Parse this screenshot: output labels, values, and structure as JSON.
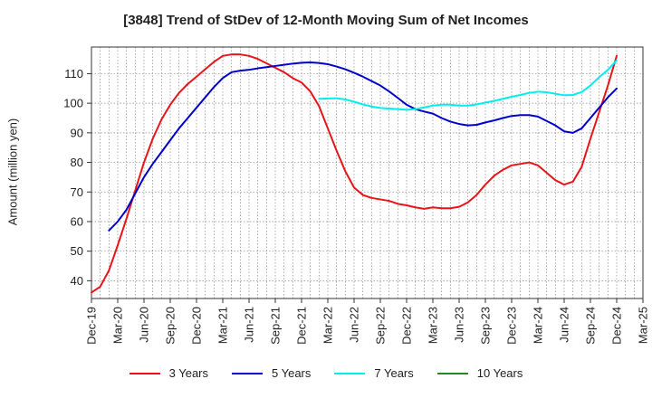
{
  "chart_data": {
    "type": "line",
    "title": "[3848]  Trend of StDev of 12-Month Moving Sum of Net Incomes",
    "ylabel": "Amount (million yen)",
    "xlabel": "",
    "ylim": [
      34,
      119
    ],
    "yticks": [
      40,
      50,
      60,
      70,
      80,
      90,
      100,
      110
    ],
    "xlim": [
      "2019-12",
      "2025-03"
    ],
    "xticks": [
      "Dec-19",
      "Mar-20",
      "Jun-20",
      "Sep-20",
      "Dec-20",
      "Mar-21",
      "Jun-21",
      "Sep-21",
      "Dec-21",
      "Mar-22",
      "Jun-22",
      "Sep-22",
      "Dec-22",
      "Mar-23",
      "Jun-23",
      "Sep-23",
      "Dec-23",
      "Mar-24",
      "Jun-24",
      "Sep-24",
      "Dec-24",
      "Mar-25"
    ],
    "grid": true,
    "legend_position": "bottom",
    "series": [
      {
        "name": "3 Years",
        "color": "#e8141a",
        "points": [
          [
            "2019-12",
            36
          ],
          [
            "2020-01",
            38
          ],
          [
            "2020-02",
            43.5
          ],
          [
            "2020-03",
            52
          ],
          [
            "2020-04",
            61
          ],
          [
            "2020-05",
            70.5
          ],
          [
            "2020-06",
            80
          ],
          [
            "2020-07",
            88
          ],
          [
            "2020-08",
            94.5
          ],
          [
            "2020-09",
            99.5
          ],
          [
            "2020-10",
            103.5
          ],
          [
            "2020-11",
            106.5
          ],
          [
            "2020-12",
            109
          ],
          [
            "2021-01",
            111.5
          ],
          [
            "2021-02",
            114
          ],
          [
            "2021-03",
            116
          ],
          [
            "2021-04",
            116.5
          ],
          [
            "2021-05",
            116.5
          ],
          [
            "2021-06",
            116
          ],
          [
            "2021-07",
            115
          ],
          [
            "2021-08",
            113.5
          ],
          [
            "2021-09",
            112
          ],
          [
            "2021-10",
            110.5
          ],
          [
            "2021-11",
            108.5
          ],
          [
            "2021-12",
            107
          ],
          [
            "2022-01",
            104
          ],
          [
            "2022-02",
            99
          ],
          [
            "2022-03",
            91.5
          ],
          [
            "2022-04",
            84
          ],
          [
            "2022-05",
            77
          ],
          [
            "2022-06",
            71.5
          ],
          [
            "2022-07",
            69
          ],
          [
            "2022-08",
            68
          ],
          [
            "2022-09",
            67.5
          ],
          [
            "2022-10",
            67
          ],
          [
            "2022-11",
            66
          ],
          [
            "2022-12",
            65.5
          ],
          [
            "2023-01",
            64.8
          ],
          [
            "2023-02",
            64.3
          ],
          [
            "2023-03",
            64.8
          ],
          [
            "2023-04",
            64.5
          ],
          [
            "2023-05",
            64.5
          ],
          [
            "2023-06",
            65
          ],
          [
            "2023-07",
            66.5
          ],
          [
            "2023-08",
            69
          ],
          [
            "2023-09",
            72.5
          ],
          [
            "2023-10",
            75.5
          ],
          [
            "2023-11",
            77.5
          ],
          [
            "2023-12",
            79
          ],
          [
            "2024-01",
            79.5
          ],
          [
            "2024-02",
            80
          ],
          [
            "2024-03",
            79
          ],
          [
            "2024-04",
            76.5
          ],
          [
            "2024-05",
            74
          ],
          [
            "2024-06",
            72.5
          ],
          [
            "2024-07",
            73.5
          ],
          [
            "2024-08",
            78.5
          ],
          [
            "2024-09",
            88
          ],
          [
            "2024-10",
            97
          ],
          [
            "2024-11",
            106
          ],
          [
            "2024-12",
            116
          ]
        ]
      },
      {
        "name": "5 Years",
        "color": "#0000cc",
        "points": [
          [
            "2020-02",
            57
          ],
          [
            "2020-03",
            60
          ],
          [
            "2020-04",
            64
          ],
          [
            "2020-05",
            69.5
          ],
          [
            "2020-06",
            75
          ],
          [
            "2020-07",
            79.5
          ],
          [
            "2020-08",
            83.5
          ],
          [
            "2020-09",
            87.5
          ],
          [
            "2020-10",
            91.5
          ],
          [
            "2020-11",
            95
          ],
          [
            "2020-12",
            98.5
          ],
          [
            "2021-01",
            102
          ],
          [
            "2021-02",
            105.5
          ],
          [
            "2021-03",
            108.5
          ],
          [
            "2021-04",
            110.5
          ],
          [
            "2021-05",
            111
          ],
          [
            "2021-06",
            111.3
          ],
          [
            "2021-07",
            111.8
          ],
          [
            "2021-08",
            112.2
          ],
          [
            "2021-09",
            112.6
          ],
          [
            "2021-10",
            113
          ],
          [
            "2021-11",
            113.4
          ],
          [
            "2021-12",
            113.7
          ],
          [
            "2022-01",
            113.8
          ],
          [
            "2022-02",
            113.6
          ],
          [
            "2022-03",
            113.2
          ],
          [
            "2022-04",
            112.4
          ],
          [
            "2022-05",
            111.5
          ],
          [
            "2022-06",
            110.3
          ],
          [
            "2022-07",
            109
          ],
          [
            "2022-08",
            107.5
          ],
          [
            "2022-09",
            106
          ],
          [
            "2022-10",
            104
          ],
          [
            "2022-11",
            101.8
          ],
          [
            "2022-12",
            99.5
          ],
          [
            "2023-01",
            98
          ],
          [
            "2023-02",
            97.2
          ],
          [
            "2023-03",
            96.5
          ],
          [
            "2023-04",
            95
          ],
          [
            "2023-05",
            93.8
          ],
          [
            "2023-06",
            93
          ],
          [
            "2023-07",
            92.5
          ],
          [
            "2023-08",
            92.7
          ],
          [
            "2023-09",
            93.5
          ],
          [
            "2023-10",
            94.2
          ],
          [
            "2023-11",
            95
          ],
          [
            "2023-12",
            95.7
          ],
          [
            "2024-01",
            96
          ],
          [
            "2024-02",
            96
          ],
          [
            "2024-03",
            95.5
          ],
          [
            "2024-04",
            94
          ],
          [
            "2024-05",
            92.5
          ],
          [
            "2024-06",
            90.5
          ],
          [
            "2024-07",
            90
          ],
          [
            "2024-08",
            91.5
          ],
          [
            "2024-09",
            95
          ],
          [
            "2024-10",
            98.5
          ],
          [
            "2024-11",
            102
          ],
          [
            "2024-12",
            105
          ]
        ]
      },
      {
        "name": "7 Years",
        "color": "#00eeee",
        "points": [
          [
            "2022-02",
            101.5
          ],
          [
            "2022-03",
            101.6
          ],
          [
            "2022-04",
            101.7
          ],
          [
            "2022-05",
            101.3
          ],
          [
            "2022-06",
            100.5
          ],
          [
            "2022-07",
            99.6
          ],
          [
            "2022-08",
            98.9
          ],
          [
            "2022-09",
            98.4
          ],
          [
            "2022-10",
            98.2
          ],
          [
            "2022-11",
            98
          ],
          [
            "2022-12",
            97.8
          ],
          [
            "2023-01",
            98
          ],
          [
            "2023-02",
            98.6
          ],
          [
            "2023-03",
            99.2
          ],
          [
            "2023-04",
            99.5
          ],
          [
            "2023-05",
            99.5
          ],
          [
            "2023-06",
            99.2
          ],
          [
            "2023-07",
            99.2
          ],
          [
            "2023-08",
            99.6
          ],
          [
            "2023-09",
            100.2
          ],
          [
            "2023-10",
            100.8
          ],
          [
            "2023-11",
            101.5
          ],
          [
            "2023-12",
            102.2
          ],
          [
            "2024-01",
            102.8
          ],
          [
            "2024-02",
            103.5
          ],
          [
            "2024-03",
            103.9
          ],
          [
            "2024-04",
            103.7
          ],
          [
            "2024-05",
            103.2
          ],
          [
            "2024-06",
            102.7
          ],
          [
            "2024-07",
            102.8
          ],
          [
            "2024-08",
            103.8
          ],
          [
            "2024-09",
            106
          ],
          [
            "2024-10",
            108.8
          ],
          [
            "2024-11",
            111.3
          ],
          [
            "2024-12",
            114.5
          ]
        ]
      },
      {
        "name": "10 Years",
        "color": "#228b22",
        "points": []
      }
    ]
  }
}
